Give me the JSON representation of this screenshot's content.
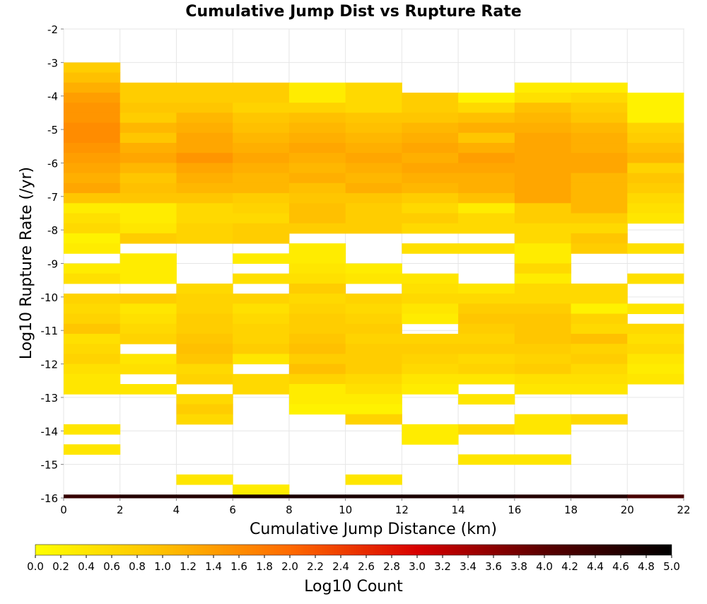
{
  "chart_data": {
    "type": "heatmap",
    "title": "Cumulative Jump Dist vs Rupture Rate",
    "xlabel": "Cumulative Jump Distance (km)",
    "ylabel": "Log10 Rupture Rate (/yr)",
    "xlim": [
      0,
      22
    ],
    "ylim": [
      -16,
      -2
    ],
    "x_ticks": [
      0,
      2,
      4,
      6,
      8,
      10,
      12,
      14,
      16,
      18,
      20,
      22
    ],
    "x_tick_labels": [
      "0",
      "2",
      "4",
      "6",
      "8",
      "10",
      "12",
      "14",
      "16",
      "18",
      "20",
      "22"
    ],
    "y_ticks": [
      -2,
      -3,
      -4,
      -5,
      -6,
      -7,
      -8,
      -9,
      -10,
      -11,
      -12,
      -13,
      -14,
      -15,
      -16
    ],
    "y_tick_labels": [
      "-2",
      "-3",
      "-4",
      "-5",
      "-6",
      "-7",
      "-8",
      "-9",
      "-10",
      "-11",
      "-12",
      "-13",
      "-14",
      "-15",
      "-16"
    ],
    "grid": true,
    "bin_width_x": 2,
    "bin_height_y": 0.3,
    "x_bin_starts": [
      0,
      2,
      4,
      6,
      8,
      10,
      12,
      14,
      16,
      18,
      20
    ],
    "y_bin_tops": [
      -3.0,
      -3.3,
      -3.6,
      -3.9,
      -4.2,
      -4.5,
      -4.8,
      -5.1,
      -5.4,
      -5.7,
      -6.0,
      -6.3,
      -6.6,
      -6.9,
      -7.2,
      -7.5,
      -7.8,
      -8.1,
      -8.4,
      -8.7,
      -9.0,
      -9.3,
      -9.6,
      -9.9,
      -10.2,
      -10.5,
      -10.8,
      -11.1,
      -11.4,
      -11.7,
      -12.0,
      -12.3,
      -12.6,
      -12.9,
      -13.2,
      -13.5,
      -13.8,
      -14.1,
      -14.4,
      -14.7,
      -15.0,
      -15.3,
      -15.6,
      -15.9
    ],
    "values": [
      [
        0.8,
        null,
        null,
        null,
        null,
        null,
        null,
        null,
        null,
        null,
        null
      ],
      [
        1.0,
        null,
        null,
        null,
        null,
        null,
        null,
        null,
        null,
        null,
        null
      ],
      [
        1.2,
        0.8,
        0.8,
        0.8,
        0.3,
        0.6,
        null,
        null,
        0.3,
        0.3,
        null
      ],
      [
        1.4,
        0.8,
        0.8,
        0.8,
        0.3,
        0.6,
        0.8,
        0.2,
        0.5,
        0.6,
        0.2
      ],
      [
        1.5,
        0.9,
        0.9,
        0.7,
        0.7,
        0.6,
        0.8,
        0.6,
        1.0,
        0.8,
        0.2
      ],
      [
        1.5,
        0.8,
        1.1,
        0.9,
        1.0,
        0.9,
        0.9,
        1.0,
        1.1,
        0.9,
        0.2
      ],
      [
        1.6,
        1.1,
        1.2,
        1.0,
        1.1,
        1.0,
        1.1,
        1.2,
        1.2,
        1.1,
        0.7
      ],
      [
        1.6,
        0.9,
        1.3,
        1.1,
        1.2,
        1.1,
        1.2,
        0.9,
        1.3,
        1.2,
        0.8
      ],
      [
        1.5,
        1.2,
        1.3,
        1.2,
        1.3,
        1.2,
        1.3,
        1.2,
        1.3,
        1.2,
        1.0
      ],
      [
        1.4,
        1.3,
        1.5,
        1.3,
        1.2,
        1.3,
        1.2,
        1.4,
        1.3,
        1.3,
        1.1
      ],
      [
        1.3,
        1.1,
        1.3,
        1.2,
        1.1,
        1.2,
        1.3,
        1.3,
        1.3,
        1.3,
        0.7
      ],
      [
        1.2,
        0.9,
        1.2,
        1.1,
        1.2,
        1.1,
        1.2,
        1.2,
        1.3,
        1.1,
        0.9
      ],
      [
        1.3,
        1.0,
        1.1,
        1.1,
        1.0,
        1.2,
        1.1,
        1.2,
        1.3,
        1.1,
        0.8
      ],
      [
        0.9,
        0.9,
        0.9,
        0.8,
        0.9,
        0.9,
        0.8,
        1.0,
        1.3,
        1.1,
        0.6
      ],
      [
        0.3,
        0.3,
        0.6,
        0.7,
        1.0,
        0.8,
        0.6,
        0.3,
        0.8,
        1.1,
        0.5
      ],
      [
        0.5,
        0.3,
        0.6,
        0.6,
        1.0,
        0.8,
        0.8,
        0.6,
        0.8,
        0.8,
        0.4
      ],
      [
        0.6,
        0.4,
        0.7,
        0.8,
        0.8,
        0.8,
        0.6,
        0.6,
        0.6,
        0.6,
        null
      ],
      [
        0.2,
        0.8,
        0.7,
        0.8,
        null,
        null,
        null,
        null,
        0.6,
        0.9,
        null
      ],
      [
        0.3,
        null,
        null,
        null,
        0.3,
        null,
        0.5,
        0.5,
        0.3,
        0.8,
        0.5
      ],
      [
        null,
        0.3,
        null,
        0.3,
        0.3,
        null,
        null,
        null,
        0.3,
        null,
        null
      ],
      [
        0.3,
        0.3,
        null,
        null,
        0.4,
        0.3,
        null,
        null,
        0.6,
        null,
        null
      ],
      [
        0.5,
        0.3,
        null,
        0.5,
        0.5,
        0.4,
        0.4,
        null,
        0.3,
        null,
        0.5
      ],
      [
        null,
        null,
        0.6,
        null,
        0.8,
        null,
        0.5,
        0.4,
        0.6,
        0.6,
        null
      ],
      [
        0.7,
        0.8,
        0.7,
        0.7,
        0.6,
        0.7,
        0.6,
        0.6,
        0.6,
        0.6,
        null
      ],
      [
        0.6,
        0.4,
        0.7,
        0.5,
        0.7,
        0.6,
        0.4,
        0.8,
        0.8,
        0.2,
        0.4
      ],
      [
        0.7,
        0.5,
        0.8,
        0.6,
        0.8,
        0.7,
        0.3,
        0.9,
        0.9,
        0.7,
        null
      ],
      [
        0.9,
        0.6,
        0.8,
        0.7,
        0.8,
        0.8,
        null,
        0.8,
        0.9,
        0.6,
        0.6
      ],
      [
        0.5,
        0.7,
        0.9,
        0.7,
        0.9,
        0.7,
        0.7,
        0.7,
        0.9,
        1.0,
        0.5
      ],
      [
        0.6,
        null,
        1.0,
        0.8,
        1.0,
        0.8,
        0.8,
        0.8,
        0.8,
        0.7,
        0.6
      ],
      [
        0.7,
        0.4,
        0.9,
        0.4,
        0.8,
        0.8,
        0.7,
        0.6,
        0.7,
        0.8,
        0.4
      ],
      [
        0.5,
        0.5,
        0.6,
        null,
        1.0,
        0.8,
        0.6,
        0.7,
        0.8,
        0.6,
        0.3
      ],
      [
        0.4,
        null,
        0.7,
        0.6,
        0.7,
        0.6,
        0.4,
        0.4,
        0.5,
        0.5,
        0.4
      ],
      [
        0.4,
        0.4,
        null,
        0.6,
        0.3,
        0.5,
        0.3,
        null,
        0.4,
        0.4,
        null
      ],
      [
        null,
        null,
        0.6,
        null,
        0.3,
        0.3,
        null,
        0.4,
        null,
        null,
        null
      ],
      [
        null,
        null,
        0.8,
        null,
        0.2,
        0.2,
        null,
        null,
        null,
        null,
        null
      ],
      [
        null,
        null,
        0.6,
        null,
        null,
        0.7,
        null,
        null,
        0.4,
        0.6,
        null
      ],
      [
        0.4,
        null,
        null,
        null,
        null,
        null,
        0.3,
        0.6,
        0.4,
        null,
        null
      ],
      [
        null,
        null,
        null,
        null,
        null,
        null,
        0.3,
        null,
        null,
        null,
        null
      ],
      [
        0.4,
        null,
        null,
        null,
        null,
        null,
        null,
        null,
        null,
        null,
        null
      ],
      [
        null,
        null,
        null,
        null,
        null,
        null,
        null,
        0.4,
        0.4,
        null,
        null
      ],
      [
        null,
        null,
        null,
        null,
        null,
        null,
        null,
        null,
        null,
        null,
        null
      ],
      [
        null,
        null,
        0.4,
        null,
        null,
        0.4,
        null,
        null,
        null,
        null,
        null
      ],
      [
        null,
        null,
        null,
        0.3,
        null,
        null,
        null,
        null,
        null,
        null,
        null
      ],
      [
        4.4,
        4.6,
        4.6,
        4.7,
        4.7,
        4.7,
        4.7,
        4.7,
        4.6,
        4.6,
        4.2
      ]
    ],
    "colorbar": {
      "label": "Log10 Count",
      "min": 0.0,
      "max": 5.0,
      "tick_labels": [
        "0.0",
        "0.2",
        "0.4",
        "0.6",
        "0.8",
        "1.0",
        "1.2",
        "1.4",
        "1.6",
        "1.8",
        "2.0",
        "2.2",
        "2.4",
        "2.6",
        "2.8",
        "3.0",
        "3.2",
        "3.4",
        "3.6",
        "3.8",
        "4.0",
        "4.2",
        "4.4",
        "4.6",
        "4.8",
        "5.0"
      ],
      "color_stops": [
        "#ffff00",
        "#ffc000",
        "#ff6a00",
        "#d80000",
        "#5a0000",
        "#000000"
      ]
    }
  }
}
